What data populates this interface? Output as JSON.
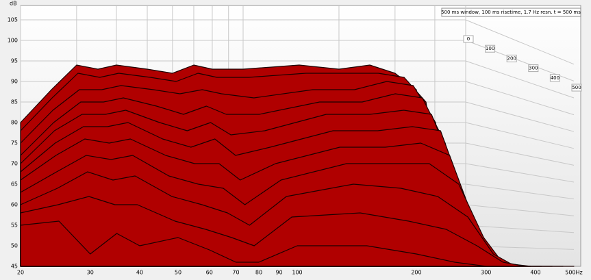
{
  "chart_data": {
    "type": "waterfall",
    "y_label": "dB",
    "legend": "500 ms window, 100 ms risetime, 1.7 Hz resn. t = 500 ms",
    "x": [
      20,
      25,
      30,
      35,
      40,
      50,
      60,
      70,
      80,
      100,
      150,
      200,
      250,
      300,
      350,
      400,
      500
    ],
    "xlim": [
      20,
      500
    ],
    "log_x": true,
    "xticks": [
      20,
      30,
      40,
      50,
      60,
      70,
      80,
      90,
      100,
      200,
      300,
      400,
      {
        "value": 500,
        "label": "500Hz"
      }
    ],
    "ylim": [
      45,
      105
    ],
    "yticks": [
      45,
      50,
      55,
      60,
      65,
      70,
      75,
      80,
      85,
      90,
      95,
      100,
      105
    ],
    "zticks": [
      0,
      100,
      200,
      300,
      400,
      500
    ],
    "fill_color": "#b00000",
    "line_color": "#1a0000",
    "grid": true,
    "series": [
      {
        "name": "0",
        "t": 0,
        "values": [
          80,
          88,
          94,
          93,
          94,
          93,
          92,
          94,
          93,
          93,
          94,
          93,
          94,
          92,
          88,
          60,
          47
        ]
      },
      {
        "name": "50",
        "t": 50,
        "values": [
          78,
          86,
          92,
          91,
          92,
          91,
          90,
          92,
          91,
          91,
          92,
          92,
          92,
          91,
          85,
          55,
          46
        ]
      },
      {
        "name": "100",
        "t": 100,
        "values": [
          75,
          83,
          88,
          88,
          89,
          88,
          87,
          88,
          87,
          86,
          88,
          88,
          90,
          89,
          80,
          52,
          45
        ]
      },
      {
        "name": "150",
        "t": 150,
        "values": [
          72,
          80,
          85,
          85,
          86,
          84,
          82,
          84,
          82,
          82,
          85,
          85,
          87,
          86,
          75,
          50,
          45
        ]
      },
      {
        "name": "200",
        "t": 200,
        "values": [
          70,
          78,
          82,
          82,
          83,
          80,
          78,
          80,
          77,
          78,
          82,
          82,
          83,
          82,
          68,
          48,
          45
        ]
      },
      {
        "name": "250",
        "t": 250,
        "values": [
          68,
          75,
          79,
          79,
          80,
          76,
          74,
          76,
          72,
          74,
          78,
          78,
          79,
          78,
          62,
          47,
          45
        ]
      },
      {
        "name": "300",
        "t": 300,
        "values": [
          66,
          72,
          76,
          75,
          76,
          72,
          70,
          70,
          66,
          70,
          74,
          74,
          75,
          72,
          56,
          46,
          45
        ]
      },
      {
        "name": "350",
        "t": 350,
        "values": [
          63,
          68,
          72,
          71,
          72,
          67,
          65,
          64,
          60,
          66,
          70,
          70,
          70,
          65,
          52,
          45,
          45
        ]
      },
      {
        "name": "400",
        "t": 400,
        "values": [
          60,
          64,
          68,
          66,
          67,
          62,
          60,
          58,
          55,
          62,
          65,
          64,
          62,
          57,
          48,
          45,
          45
        ]
      },
      {
        "name": "450",
        "t": 450,
        "values": [
          58,
          60,
          62,
          60,
          60,
          56,
          54,
          52,
          50,
          57,
          58,
          56,
          54,
          50,
          46,
          45,
          45
        ]
      },
      {
        "name": "500",
        "t": 500,
        "values": [
          55,
          56,
          48,
          53,
          50,
          52,
          49,
          46,
          46,
          50,
          50,
          48,
          46,
          45,
          45,
          45,
          45
        ]
      }
    ]
  }
}
